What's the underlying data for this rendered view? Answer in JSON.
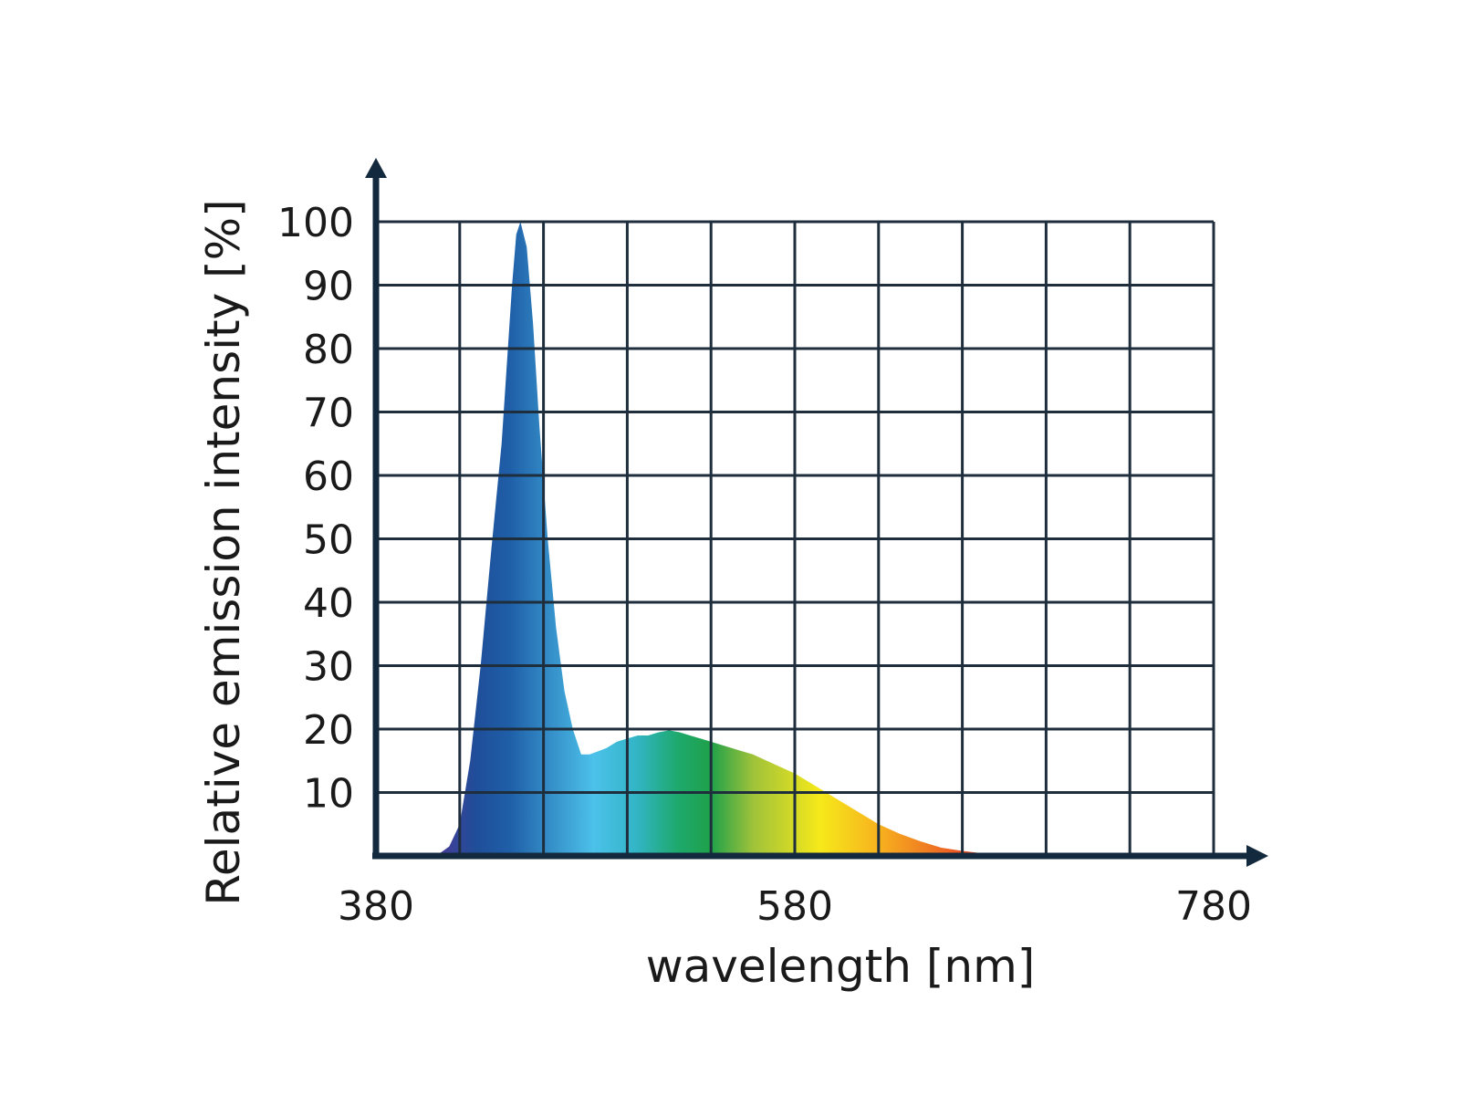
{
  "chart_data": {
    "type": "area",
    "title": "",
    "xlabel": "wavelength [nm]",
    "ylabel": "Relative emission intensity [%]",
    "xlim": [
      380,
      780
    ],
    "ylim": [
      0,
      100
    ],
    "x_ticks": [
      380,
      580,
      780
    ],
    "x_tick_labels": [
      "380",
      "580",
      "780"
    ],
    "y_ticks": [
      10,
      20,
      30,
      40,
      50,
      60,
      70,
      80,
      90,
      100
    ],
    "y_tick_labels": [
      "10",
      "20",
      "30",
      "40",
      "50",
      "60",
      "70",
      "80",
      "90",
      "100"
    ],
    "grid": true,
    "grid_x": [
      420,
      460,
      500,
      540,
      580,
      620,
      660,
      700,
      740,
      780
    ],
    "grid_y": [
      10,
      20,
      30,
      40,
      50,
      60,
      70,
      80,
      90,
      100
    ],
    "legend": "none",
    "fill": "visible-spectrum gradient",
    "series": [
      {
        "x": [
          380,
          400,
          410,
          415,
          420,
          425,
          430,
          435,
          440,
          442,
          445,
          447,
          449,
          452,
          455,
          458,
          462,
          466,
          470,
          474,
          478,
          482,
          486,
          490,
          495,
          500,
          505,
          510,
          515,
          520,
          525,
          530,
          535,
          540,
          545,
          550,
          555,
          560,
          570,
          580,
          590,
          600,
          610,
          620,
          630,
          640,
          650,
          660,
          670,
          680,
          690,
          700,
          710,
          720,
          740,
          760,
          780
        ],
        "y": [
          0,
          0,
          0.3,
          1.5,
          5,
          15,
          30,
          48,
          65,
          75,
          90,
          98,
          100,
          96,
          84,
          68,
          50,
          36,
          26,
          20,
          16,
          16,
          16.5,
          17,
          18,
          18.5,
          19,
          19,
          19.5,
          19.8,
          19.5,
          19,
          18.5,
          18,
          17.5,
          17,
          16.5,
          16,
          14.5,
          13,
          11,
          9,
          7,
          5,
          3.5,
          2.3,
          1.3,
          0.8,
          0.4,
          0.2,
          0.1,
          0,
          0,
          0,
          0,
          0,
          0
        ]
      }
    ]
  }
}
